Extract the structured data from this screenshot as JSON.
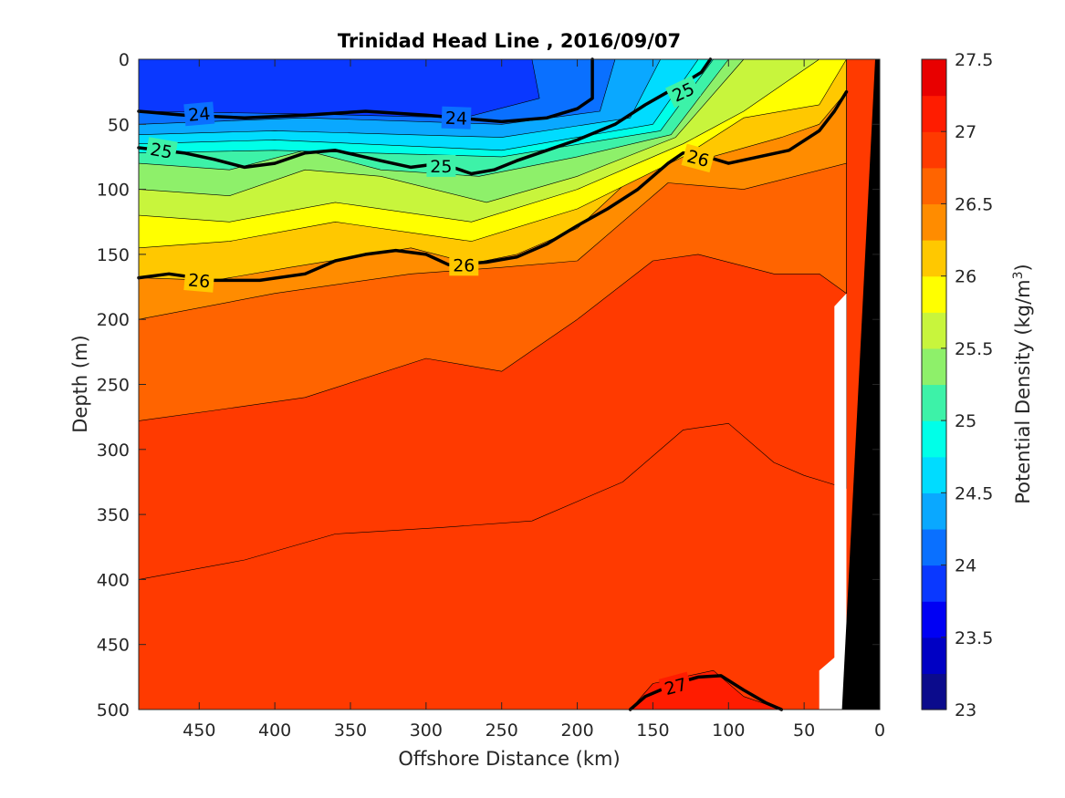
{
  "chart_data": {
    "type": "heatmap",
    "subtype": "filled-contour",
    "title": "Trinidad Head Line , 2016/09/07",
    "xlabel": "Offshore Distance (km)",
    "ylabel": "Depth (m)",
    "xlim": [
      490,
      0
    ],
    "x_direction": "reversed",
    "ylim": [
      0,
      500
    ],
    "y_direction": "reversed",
    "xticks": [
      450,
      400,
      350,
      300,
      250,
      200,
      150,
      100,
      50,
      0
    ],
    "yticks": [
      0,
      50,
      100,
      150,
      200,
      250,
      300,
      350,
      400,
      450,
      500
    ],
    "colorbar": {
      "label_main": "Potential Density (kg/m",
      "label_sup": "3",
      "label_close": ")",
      "range": [
        23,
        27.5
      ],
      "ticks": [
        "23",
        "23.5",
        "24",
        "24.5",
        "25",
        "25.5",
        "26",
        "26.5",
        "27",
        "27.5"
      ],
      "level_step": 0.25,
      "colors": [
        "#0b0b8c",
        "#0000c4",
        "#0000f4",
        "#0a38ff",
        "#0a70ff",
        "#0aa8ff",
        "#00dcff",
        "#00ffe8",
        "#3df2a8",
        "#8ef06a",
        "#c8f53c",
        "#ffff00",
        "#ffc800",
        "#ff8c00",
        "#ff6400",
        "#ff3a00",
        "#ff1c00",
        "#e80000"
      ]
    },
    "layers": [
      {
        "level": 23.75,
        "points": [
          [
            490,
            0
          ],
          [
            230,
            0
          ],
          [
            225,
            30
          ],
          [
            275,
            45
          ],
          [
            380,
            42
          ],
          [
            490,
            40
          ]
        ]
      },
      {
        "level": 24.0,
        "points": [
          [
            490,
            0
          ],
          [
            175,
            0
          ],
          [
            185,
            40
          ],
          [
            250,
            50
          ],
          [
            380,
            45
          ],
          [
            490,
            50
          ]
        ]
      },
      {
        "level": 24.25,
        "points": [
          [
            490,
            0
          ],
          [
            145,
            0
          ],
          [
            165,
            45
          ],
          [
            250,
            60
          ],
          [
            400,
            55
          ],
          [
            490,
            58
          ]
        ]
      },
      {
        "level": 24.5,
        "points": [
          [
            490,
            0
          ],
          [
            120,
            0
          ],
          [
            150,
            50
          ],
          [
            250,
            70
          ],
          [
            400,
            62
          ],
          [
            490,
            65
          ]
        ]
      },
      {
        "level": 24.75,
        "points": [
          [
            490,
            0
          ],
          [
            110,
            0
          ],
          [
            145,
            55
          ],
          [
            250,
            75
          ],
          [
            400,
            70
          ],
          [
            490,
            72
          ]
        ]
      },
      {
        "level": 25.0,
        "points": [
          [
            490,
            0
          ],
          [
            100,
            0
          ],
          [
            138,
            58
          ],
          [
            200,
            75
          ],
          [
            265,
            90
          ],
          [
            330,
            85
          ],
          [
            380,
            70
          ],
          [
            430,
            85
          ],
          [
            490,
            80
          ]
        ]
      },
      {
        "level": 25.25,
        "points": [
          [
            490,
            0
          ],
          [
            90,
            0
          ],
          [
            135,
            60
          ],
          [
            200,
            90
          ],
          [
            260,
            110
          ],
          [
            330,
            90
          ],
          [
            380,
            85
          ],
          [
            430,
            105
          ],
          [
            490,
            100
          ]
        ]
      },
      {
        "level": 25.5,
        "points": [
          [
            490,
            0
          ],
          [
            40,
            0
          ],
          [
            90,
            40
          ],
          [
            130,
            65
          ],
          [
            200,
            100
          ],
          [
            270,
            125
          ],
          [
            360,
            110
          ],
          [
            430,
            125
          ],
          [
            490,
            120
          ]
        ]
      },
      {
        "level": 25.75,
        "points": [
          [
            490,
            0
          ],
          [
            22,
            0
          ],
          [
            40,
            35
          ],
          [
            90,
            45
          ],
          [
            130,
            75
          ],
          [
            200,
            115
          ],
          [
            270,
            140
          ],
          [
            360,
            125
          ],
          [
            430,
            140
          ],
          [
            490,
            145
          ]
        ]
      },
      {
        "level": 26.0,
        "points": [
          [
            490,
            0
          ],
          [
            22,
            0
          ],
          [
            22,
            25
          ],
          [
            40,
            50
          ],
          [
            65,
            60
          ],
          [
            120,
            78
          ],
          [
            140,
            65
          ],
          [
            200,
            130
          ],
          [
            240,
            150
          ],
          [
            270,
            157
          ],
          [
            310,
            145
          ],
          [
            390,
            160
          ],
          [
            440,
            170
          ],
          [
            490,
            168
          ]
        ]
      },
      {
        "level": 26.25,
        "points": [
          [
            490,
            0
          ],
          [
            22,
            0
          ],
          [
            22,
            80
          ],
          [
            90,
            100
          ],
          [
            140,
            95
          ],
          [
            200,
            155
          ],
          [
            250,
            160
          ],
          [
            310,
            165
          ],
          [
            400,
            180
          ],
          [
            490,
            200
          ]
        ]
      },
      {
        "level": 26.5,
        "points": [
          [
            490,
            0
          ],
          [
            22,
            0
          ],
          [
            22,
            180
          ],
          [
            40,
            165
          ],
          [
            70,
            165
          ],
          [
            120,
            150
          ],
          [
            150,
            155
          ],
          [
            200,
            200
          ],
          [
            250,
            240
          ],
          [
            300,
            230
          ],
          [
            380,
            260
          ],
          [
            440,
            270
          ],
          [
            490,
            278
          ]
        ]
      },
      {
        "level": 26.75,
        "points": [
          [
            490,
            0
          ],
          [
            22,
            0
          ],
          [
            22,
            330
          ],
          [
            50,
            320
          ],
          [
            70,
            310
          ],
          [
            100,
            280
          ],
          [
            130,
            285
          ],
          [
            170,
            325
          ],
          [
            230,
            355
          ],
          [
            290,
            360
          ],
          [
            360,
            365
          ],
          [
            420,
            385
          ],
          [
            490,
            400
          ]
        ]
      },
      {
        "level": 27.0,
        "points": [
          [
            490,
            500
          ],
          [
            165,
            500
          ],
          [
            150,
            480
          ],
          [
            110,
            470
          ],
          [
            90,
            490
          ],
          [
            65,
            500
          ]
        ]
      }
    ],
    "contour_lines": [
      {
        "level": "24",
        "points": [
          [
            490,
            40
          ],
          [
            460,
            43
          ],
          [
            420,
            45
          ],
          [
            380,
            43
          ],
          [
            340,
            40
          ],
          [
            300,
            43
          ],
          [
            250,
            48
          ],
          [
            220,
            45
          ],
          [
            200,
            38
          ],
          [
            190,
            30
          ],
          [
            190,
            0
          ]
        ]
      },
      {
        "level": "25",
        "points": [
          [
            490,
            68
          ],
          [
            460,
            72
          ],
          [
            440,
            77
          ],
          [
            420,
            83
          ],
          [
            400,
            80
          ],
          [
            380,
            72
          ],
          [
            360,
            70
          ],
          [
            330,
            78
          ],
          [
            310,
            83
          ],
          [
            290,
            80
          ],
          [
            270,
            88
          ],
          [
            255,
            85
          ],
          [
            240,
            78
          ],
          [
            220,
            70
          ],
          [
            200,
            62
          ],
          [
            175,
            50
          ],
          [
            155,
            35
          ],
          [
            140,
            25
          ],
          [
            125,
            15
          ],
          [
            118,
            10
          ],
          [
            112,
            0
          ]
        ]
      },
      {
        "level": "26",
        "points": [
          [
            490,
            168
          ],
          [
            470,
            165
          ],
          [
            440,
            170
          ],
          [
            410,
            170
          ],
          [
            380,
            165
          ],
          [
            360,
            155
          ],
          [
            340,
            150
          ],
          [
            320,
            147
          ],
          [
            300,
            150
          ],
          [
            285,
            158
          ],
          [
            260,
            156
          ],
          [
            240,
            152
          ],
          [
            220,
            142
          ],
          [
            200,
            128
          ],
          [
            180,
            115
          ],
          [
            160,
            100
          ],
          [
            140,
            80
          ],
          [
            130,
            72
          ],
          [
            120,
            73
          ],
          [
            100,
            80
          ],
          [
            80,
            75
          ],
          [
            60,
            70
          ],
          [
            40,
            55
          ],
          [
            30,
            40
          ],
          [
            22,
            25
          ]
        ]
      },
      {
        "level": "27",
        "points": [
          [
            165,
            500
          ],
          [
            155,
            490
          ],
          [
            135,
            480
          ],
          [
            120,
            475
          ],
          [
            105,
            474
          ],
          [
            90,
            485
          ],
          [
            75,
            495
          ],
          [
            65,
            500
          ]
        ]
      }
    ],
    "contour_labels": [
      {
        "text": "24",
        "x": 450,
        "y": 42,
        "angle": -5
      },
      {
        "text": "24",
        "x": 280,
        "y": 45,
        "angle": 2
      },
      {
        "text": "25",
        "x": 475,
        "y": 70,
        "angle": 10
      },
      {
        "text": "25",
        "x": 290,
        "y": 82,
        "angle": 0
      },
      {
        "text": "25",
        "x": 130,
        "y": 25,
        "angle": -25
      },
      {
        "text": "26",
        "x": 450,
        "y": 170,
        "angle": 5
      },
      {
        "text": "26",
        "x": 275,
        "y": 158,
        "angle": 0
      },
      {
        "text": "26",
        "x": 120,
        "y": 76,
        "angle": 15
      },
      {
        "text": "27",
        "x": 135,
        "y": 482,
        "angle": -15
      }
    ],
    "no_data_region": {
      "color": "#ffffff",
      "points": [
        [
          40,
          500
        ],
        [
          22,
          500
        ],
        [
          22,
          180
        ],
        [
          30,
          190
        ],
        [
          30,
          460
        ],
        [
          40,
          470
        ]
      ]
    },
    "bathymetry": {
      "color": "#000000",
      "points": [
        [
          0,
          0
        ],
        [
          3,
          0
        ],
        [
          25,
          500
        ],
        [
          0,
          500
        ]
      ]
    },
    "grid": false,
    "legend": "colorbar-right"
  }
}
